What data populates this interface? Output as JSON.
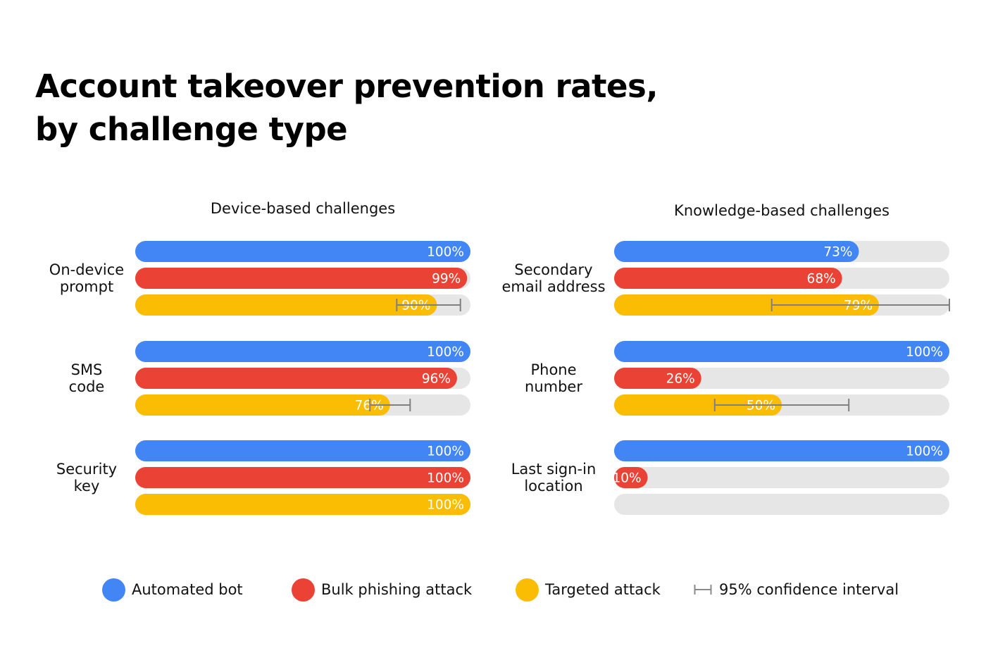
{
  "title": {
    "line1": "Account takeover prevention rates,",
    "line2": "by challenge type"
  },
  "colors": {
    "automated_bot": "#4285F4",
    "bulk_phishing": "#EA4335",
    "targeted": "#FBBC04",
    "track": "#E6E6E6",
    "ci_whisker": "#808080"
  },
  "chart_data": {
    "type": "bar",
    "orientation": "horizontal",
    "value_unit": "%",
    "xlim": [
      0,
      100
    ],
    "series": [
      {
        "key": "automated_bot",
        "name": "Automated bot"
      },
      {
        "key": "bulk_phishing",
        "name": "Bulk phishing attack"
      },
      {
        "key": "targeted",
        "name": "Targeted attack"
      }
    ],
    "panels": [
      {
        "title": "Device-based challenges",
        "groups": [
          {
            "label": [
              "On-device",
              "prompt"
            ],
            "bars": [
              {
                "series": "automated_bot",
                "value": 100,
                "label": "100%"
              },
              {
                "series": "bulk_phishing",
                "value": 99,
                "label": "99%"
              },
              {
                "series": "targeted",
                "value": 90,
                "label": "90%",
                "ci": [
                  78,
                  97
                ]
              }
            ]
          },
          {
            "label": [
              "SMS",
              "code"
            ],
            "bars": [
              {
                "series": "automated_bot",
                "value": 100,
                "label": "100%"
              },
              {
                "series": "bulk_phishing",
                "value": 96,
                "label": "96%"
              },
              {
                "series": "targeted",
                "value": 76,
                "label": "76%",
                "ci": [
                  70,
                  82
                ]
              }
            ]
          },
          {
            "label": [
              "Security",
              "key"
            ],
            "bars": [
              {
                "series": "automated_bot",
                "value": 100,
                "label": "100%"
              },
              {
                "series": "bulk_phishing",
                "value": 100,
                "label": "100%"
              },
              {
                "series": "targeted",
                "value": 100,
                "label": "100%"
              }
            ]
          }
        ]
      },
      {
        "title": "Knowledge-based challenges",
        "groups": [
          {
            "label": [
              "Secondary",
              "email address"
            ],
            "bars": [
              {
                "series": "automated_bot",
                "value": 73,
                "label": "73%"
              },
              {
                "series": "bulk_phishing",
                "value": 68,
                "label": "68%"
              },
              {
                "series": "targeted",
                "value": 79,
                "label": "79%",
                "ci": [
                  47,
                  100
                ]
              }
            ]
          },
          {
            "label": [
              "Phone",
              "number"
            ],
            "bars": [
              {
                "series": "automated_bot",
                "value": 100,
                "label": "100%"
              },
              {
                "series": "bulk_phishing",
                "value": 26,
                "label": "26%"
              },
              {
                "series": "targeted",
                "value": 50,
                "label": "50%",
                "ci": [
                  30,
                  70
                ]
              }
            ]
          },
          {
            "label": [
              "Last sign-in",
              "location"
            ],
            "bars": [
              {
                "series": "automated_bot",
                "value": 100,
                "label": "100%"
              },
              {
                "series": "bulk_phishing",
                "value": 10,
                "label": "10%"
              },
              {
                "series": "targeted",
                "value": 0,
                "label": ""
              }
            ]
          }
        ]
      }
    ]
  },
  "legend": [
    {
      "key": "automated_bot",
      "label": "Automated bot",
      "icon": "circle"
    },
    {
      "key": "bulk_phishing",
      "label": "Bulk phishing attack",
      "icon": "circle"
    },
    {
      "key": "targeted",
      "label": "Targeted attack",
      "icon": "circle"
    },
    {
      "key": "ci",
      "label": "95% confidence interval",
      "icon": "error-bar-icon"
    }
  ]
}
